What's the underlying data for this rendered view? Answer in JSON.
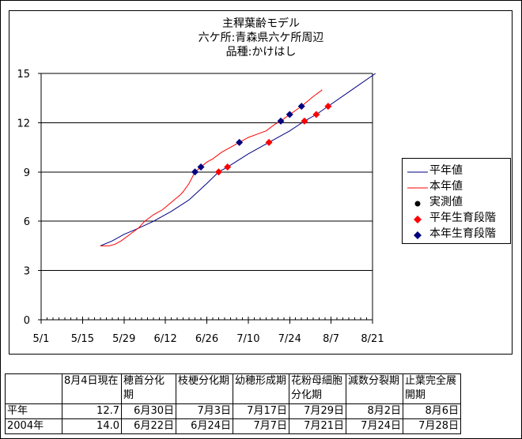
{
  "chart_data": {
    "type": "line",
    "title_lines": [
      "主稈葉齢モデル",
      "六ケ所:青森県六ケ所周辺",
      "品種:かけはし"
    ],
    "x_ticks": [
      "5/1",
      "5/15",
      "5/29",
      "6/12",
      "6/26",
      "7/10",
      "7/24",
      "8/7",
      "8/21"
    ],
    "y_ticks": [
      "0",
      "3",
      "6",
      "9",
      "12",
      "15"
    ],
    "xlim": [
      "5/1",
      "8/21"
    ],
    "ylim": [
      0,
      15
    ],
    "grid": "horizontal",
    "legend_position": "right",
    "series": [
      {
        "name": "平年値",
        "kind": "line",
        "color": "#000080",
        "points": [
          [
            "5/21",
            4.5
          ],
          [
            "5/25",
            4.8
          ],
          [
            "5/29",
            5.2
          ],
          [
            "6/2",
            5.5
          ],
          [
            "6/8",
            6.0
          ],
          [
            "6/14",
            6.6
          ],
          [
            "6/20",
            7.3
          ],
          [
            "6/26",
            8.3
          ],
          [
            "6/30",
            9.0
          ],
          [
            "7/3",
            9.3
          ],
          [
            "7/10",
            10.1
          ],
          [
            "7/17",
            10.8
          ],
          [
            "7/24",
            11.5
          ],
          [
            "7/29",
            12.1
          ],
          [
            "8/2",
            12.5
          ],
          [
            "8/6",
            13.0
          ],
          [
            "8/14",
            14.0
          ],
          [
            "8/22",
            15.0
          ]
        ]
      },
      {
        "name": "本年値",
        "kind": "line",
        "color": "#ff0000",
        "points": [
          [
            "5/21",
            4.5
          ],
          [
            "5/24",
            4.5
          ],
          [
            "5/26",
            4.6
          ],
          [
            "5/28",
            4.8
          ],
          [
            "5/31",
            5.2
          ],
          [
            "6/3",
            5.6
          ],
          [
            "6/5",
            6.0
          ],
          [
            "6/8",
            6.4
          ],
          [
            "6/11",
            6.7
          ],
          [
            "6/13",
            7.0
          ],
          [
            "6/15",
            7.3
          ],
          [
            "6/17",
            7.6
          ],
          [
            "6/18",
            7.8
          ],
          [
            "6/20",
            8.3
          ],
          [
            "6/22",
            9.0
          ],
          [
            "6/24",
            9.3
          ],
          [
            "6/26",
            9.6
          ],
          [
            "6/28",
            9.8
          ],
          [
            "7/1",
            10.2
          ],
          [
            "7/4",
            10.5
          ],
          [
            "7/7",
            10.8
          ],
          [
            "7/10",
            11.1
          ],
          [
            "7/13",
            11.3
          ],
          [
            "7/16",
            11.5
          ],
          [
            "7/19",
            11.9
          ],
          [
            "7/21",
            12.1
          ],
          [
            "7/24",
            12.5
          ],
          [
            "7/28",
            13.0
          ],
          [
            "8/1",
            13.6
          ],
          [
            "8/4",
            14.0
          ]
        ]
      },
      {
        "name": "実測値",
        "kind": "marker-circle",
        "color": "#000000",
        "points": []
      },
      {
        "name": "平年生育段階",
        "kind": "marker-diamond",
        "color": "#ff0000",
        "points": [
          [
            "6/30",
            9.0
          ],
          [
            "7/3",
            9.3
          ],
          [
            "7/17",
            10.8
          ],
          [
            "7/29",
            12.1
          ],
          [
            "8/2",
            12.5
          ],
          [
            "8/6",
            13.0
          ]
        ]
      },
      {
        "name": "本年生育段階",
        "kind": "marker-diamond",
        "color": "#000080",
        "points": [
          [
            "6/22",
            9.0
          ],
          [
            "6/24",
            9.3
          ],
          [
            "7/7",
            10.8
          ],
          [
            "7/21",
            12.1
          ],
          [
            "7/24",
            12.5
          ],
          [
            "7/28",
            13.0
          ]
        ]
      }
    ]
  },
  "table": {
    "headers": [
      "",
      "8月4日現在",
      "穂首分化期",
      "枝梗分化期",
      "幼穂形成期",
      "花粉母細胞分化期",
      "減数分裂期",
      "止葉完全展開期"
    ],
    "rows": [
      [
        "平年",
        "12.7",
        "6月30日",
        "7月3日",
        "7月17日",
        "7月29日",
        "8月2日",
        "8月6日"
      ],
      [
        "2004年",
        "14.0",
        "6月22日",
        "6月24日",
        "7月7日",
        "7月21日",
        "7月24日",
        "7月28日"
      ]
    ]
  }
}
